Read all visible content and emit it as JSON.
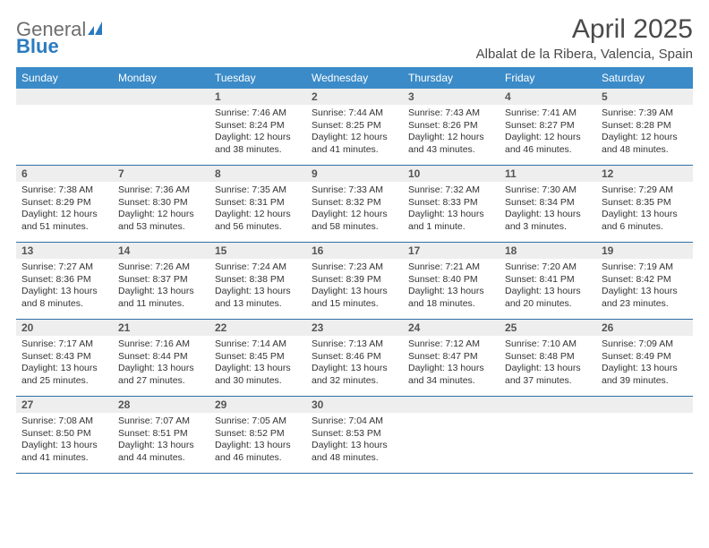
{
  "logo": {
    "word1": "General",
    "word2": "Blue"
  },
  "title": "April 2025",
  "location": "Albalat de la Ribera, Valencia, Spain",
  "colors": {
    "header_bg": "#3b8bc8",
    "header_text": "#ffffff",
    "row_divider": "#2f6fa6",
    "daynum_bg": "#eeeeee",
    "text": "#333333",
    "logo_gray": "#6e6e6e",
    "logo_blue": "#2b7bbf"
  },
  "days_of_week": [
    "Sunday",
    "Monday",
    "Tuesday",
    "Wednesday",
    "Thursday",
    "Friday",
    "Saturday"
  ],
  "leading_blanks": 2,
  "days": [
    {
      "n": 1,
      "sunrise": "7:46 AM",
      "sunset": "8:24 PM",
      "daylight": "12 hours and 38 minutes."
    },
    {
      "n": 2,
      "sunrise": "7:44 AM",
      "sunset": "8:25 PM",
      "daylight": "12 hours and 41 minutes."
    },
    {
      "n": 3,
      "sunrise": "7:43 AM",
      "sunset": "8:26 PM",
      "daylight": "12 hours and 43 minutes."
    },
    {
      "n": 4,
      "sunrise": "7:41 AM",
      "sunset": "8:27 PM",
      "daylight": "12 hours and 46 minutes."
    },
    {
      "n": 5,
      "sunrise": "7:39 AM",
      "sunset": "8:28 PM",
      "daylight": "12 hours and 48 minutes."
    },
    {
      "n": 6,
      "sunrise": "7:38 AM",
      "sunset": "8:29 PM",
      "daylight": "12 hours and 51 minutes."
    },
    {
      "n": 7,
      "sunrise": "7:36 AM",
      "sunset": "8:30 PM",
      "daylight": "12 hours and 53 minutes."
    },
    {
      "n": 8,
      "sunrise": "7:35 AM",
      "sunset": "8:31 PM",
      "daylight": "12 hours and 56 minutes."
    },
    {
      "n": 9,
      "sunrise": "7:33 AM",
      "sunset": "8:32 PM",
      "daylight": "12 hours and 58 minutes."
    },
    {
      "n": 10,
      "sunrise": "7:32 AM",
      "sunset": "8:33 PM",
      "daylight": "13 hours and 1 minute."
    },
    {
      "n": 11,
      "sunrise": "7:30 AM",
      "sunset": "8:34 PM",
      "daylight": "13 hours and 3 minutes."
    },
    {
      "n": 12,
      "sunrise": "7:29 AM",
      "sunset": "8:35 PM",
      "daylight": "13 hours and 6 minutes."
    },
    {
      "n": 13,
      "sunrise": "7:27 AM",
      "sunset": "8:36 PM",
      "daylight": "13 hours and 8 minutes."
    },
    {
      "n": 14,
      "sunrise": "7:26 AM",
      "sunset": "8:37 PM",
      "daylight": "13 hours and 11 minutes."
    },
    {
      "n": 15,
      "sunrise": "7:24 AM",
      "sunset": "8:38 PM",
      "daylight": "13 hours and 13 minutes."
    },
    {
      "n": 16,
      "sunrise": "7:23 AM",
      "sunset": "8:39 PM",
      "daylight": "13 hours and 15 minutes."
    },
    {
      "n": 17,
      "sunrise": "7:21 AM",
      "sunset": "8:40 PM",
      "daylight": "13 hours and 18 minutes."
    },
    {
      "n": 18,
      "sunrise": "7:20 AM",
      "sunset": "8:41 PM",
      "daylight": "13 hours and 20 minutes."
    },
    {
      "n": 19,
      "sunrise": "7:19 AM",
      "sunset": "8:42 PM",
      "daylight": "13 hours and 23 minutes."
    },
    {
      "n": 20,
      "sunrise": "7:17 AM",
      "sunset": "8:43 PM",
      "daylight": "13 hours and 25 minutes."
    },
    {
      "n": 21,
      "sunrise": "7:16 AM",
      "sunset": "8:44 PM",
      "daylight": "13 hours and 27 minutes."
    },
    {
      "n": 22,
      "sunrise": "7:14 AM",
      "sunset": "8:45 PM",
      "daylight": "13 hours and 30 minutes."
    },
    {
      "n": 23,
      "sunrise": "7:13 AM",
      "sunset": "8:46 PM",
      "daylight": "13 hours and 32 minutes."
    },
    {
      "n": 24,
      "sunrise": "7:12 AM",
      "sunset": "8:47 PM",
      "daylight": "13 hours and 34 minutes."
    },
    {
      "n": 25,
      "sunrise": "7:10 AM",
      "sunset": "8:48 PM",
      "daylight": "13 hours and 37 minutes."
    },
    {
      "n": 26,
      "sunrise": "7:09 AM",
      "sunset": "8:49 PM",
      "daylight": "13 hours and 39 minutes."
    },
    {
      "n": 27,
      "sunrise": "7:08 AM",
      "sunset": "8:50 PM",
      "daylight": "13 hours and 41 minutes."
    },
    {
      "n": 28,
      "sunrise": "7:07 AM",
      "sunset": "8:51 PM",
      "daylight": "13 hours and 44 minutes."
    },
    {
      "n": 29,
      "sunrise": "7:05 AM",
      "sunset": "8:52 PM",
      "daylight": "13 hours and 46 minutes."
    },
    {
      "n": 30,
      "sunrise": "7:04 AM",
      "sunset": "8:53 PM",
      "daylight": "13 hours and 48 minutes."
    }
  ],
  "labels": {
    "sunrise": "Sunrise:",
    "sunset": "Sunset:",
    "daylight": "Daylight:"
  }
}
